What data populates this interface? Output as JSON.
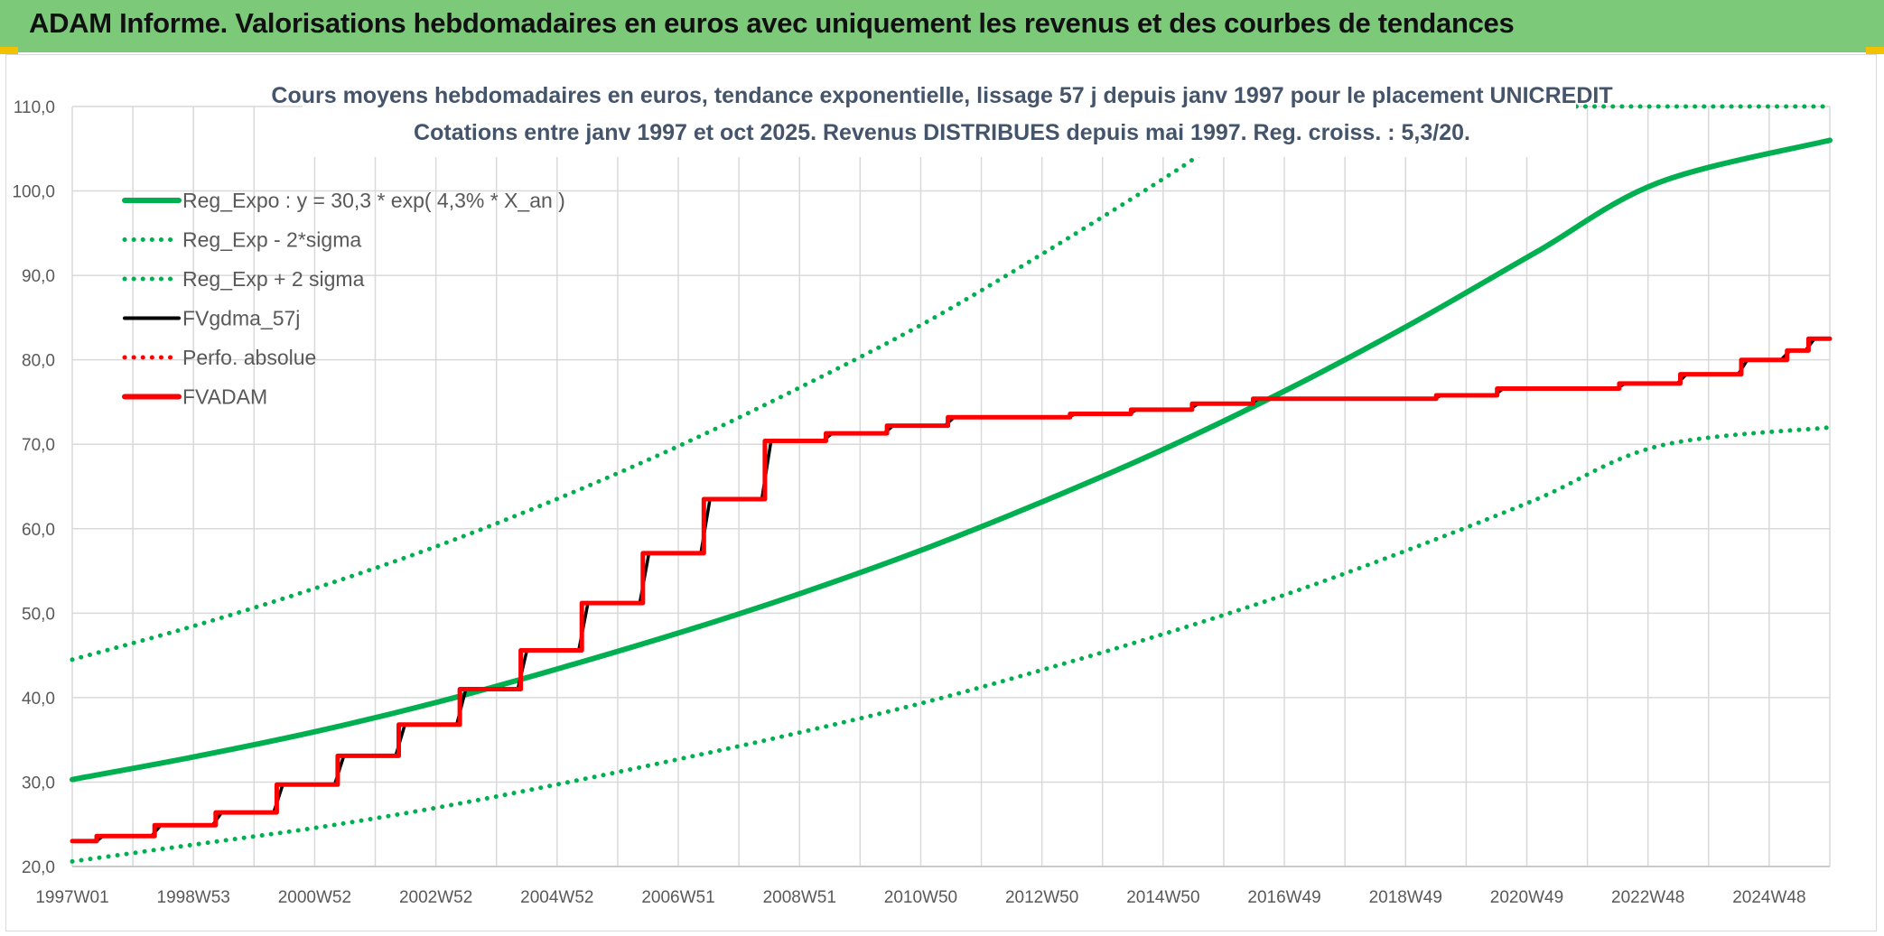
{
  "header": {
    "title": "ADAM Informe. Valorisations hebdomadaires en euros avec uniquement les revenus et des courbes de tendances",
    "background_color": "#7dc97a"
  },
  "chart_data": {
    "type": "line",
    "title_line1": "Cours moyens hebdomadaires en euros, tendance exponentielle, lissage 57 j depuis janv 1997 pour le placement UNICREDIT",
    "title_line2": "Cotations entre janv 1997 et oct 2025. Revenus DISTRIBUES depuis mai 1997. Reg. croiss. : 5,3/20.",
    "ylim": [
      20,
      110
    ],
    "y_ticks": [
      "20,0",
      "30,0",
      "40,0",
      "50,0",
      "60,0",
      "70,0",
      "80,0",
      "90,0",
      "100,0",
      "110,0"
    ],
    "x_range_years": [
      1997.0,
      2025.8
    ],
    "x_tick_labels": [
      "1997W01",
      "1998W53",
      "2000W52",
      "2002W52",
      "2004W52",
      "2006W51",
      "2008W51",
      "2010W50",
      "2012W50",
      "2014W50",
      "2016W49",
      "2018W49",
      "2020W49",
      "2022W48",
      "2024W48"
    ],
    "grid": true,
    "legend_position": "top-left",
    "colors": {
      "green": "#00b050",
      "red": "#ff0000",
      "black": "#000000"
    },
    "series": [
      {
        "name": "Reg_Expo : y = 30,3 * exp( 4,3% *  X_an )",
        "style": "solid",
        "color": "#00b050",
        "points": [
          [
            1997.0,
            30.3
          ],
          [
            1999.0,
            33.0
          ],
          [
            2001.0,
            36.0
          ],
          [
            2003.0,
            39.5
          ],
          [
            2005.0,
            43.5
          ],
          [
            2007.0,
            47.8
          ],
          [
            2009.0,
            52.5
          ],
          [
            2011.0,
            57.7
          ],
          [
            2013.0,
            63.5
          ],
          [
            2015.0,
            69.8
          ],
          [
            2017.0,
            76.8
          ],
          [
            2019.0,
            84.5
          ],
          [
            2021.0,
            92.8
          ],
          [
            2023.0,
            101.0
          ],
          [
            2025.8,
            106.0
          ]
        ]
      },
      {
        "name": "Reg_Exp - 2*sigma",
        "style": "dotted",
        "color": "#00b050",
        "points": [
          [
            1997.0,
            20.6
          ],
          [
            1999.0,
            22.6
          ],
          [
            2001.0,
            24.6
          ],
          [
            2003.0,
            27.0
          ],
          [
            2005.0,
            29.8
          ],
          [
            2007.0,
            32.8
          ],
          [
            2009.0,
            36.0
          ],
          [
            2011.0,
            39.5
          ],
          [
            2013.0,
            43.5
          ],
          [
            2015.0,
            47.8
          ],
          [
            2017.0,
            52.5
          ],
          [
            2019.0,
            57.8
          ],
          [
            2021.0,
            63.5
          ],
          [
            2023.0,
            69.8
          ],
          [
            2025.8,
            72.0
          ]
        ]
      },
      {
        "name": "Reg_Exp + 2 sigma",
        "style": "dotted",
        "color": "#00b050",
        "points": [
          [
            1997.0,
            44.5
          ],
          [
            1999.0,
            48.5
          ],
          [
            2001.0,
            53.0
          ],
          [
            2003.0,
            58.0
          ],
          [
            2005.0,
            63.7
          ],
          [
            2007.0,
            70.0
          ],
          [
            2009.0,
            77.0
          ],
          [
            2011.0,
            84.5
          ],
          [
            2013.0,
            93.0
          ],
          [
            2015.0,
            102.0
          ],
          [
            2015.7,
            105.5
          ]
        ],
        "upper_right_segment": [
          [
            2020.6,
            110.0
          ],
          [
            2025.8,
            110.0
          ]
        ]
      },
      {
        "name": "FVgdma_57j",
        "style": "solid",
        "color": "#000000",
        "points": [
          [
            1997.0,
            23.0
          ],
          [
            1997.4,
            23.0
          ],
          [
            1997.5,
            23.6
          ],
          [
            1998.3,
            23.6
          ],
          [
            1998.45,
            24.9
          ],
          [
            1999.3,
            24.9
          ],
          [
            1999.45,
            26.4
          ],
          [
            2000.3,
            26.4
          ],
          [
            2000.45,
            29.7
          ],
          [
            2001.3,
            29.7
          ],
          [
            2001.45,
            33.1
          ],
          [
            2002.3,
            33.1
          ],
          [
            2002.45,
            36.8
          ],
          [
            2003.3,
            36.8
          ],
          [
            2003.45,
            41.0
          ],
          [
            2004.3,
            41.0
          ],
          [
            2004.45,
            45.6
          ],
          [
            2005.3,
            45.6
          ],
          [
            2005.45,
            51.2
          ],
          [
            2006.3,
            51.2
          ],
          [
            2006.45,
            57.1
          ],
          [
            2007.3,
            57.1
          ],
          [
            2007.45,
            63.5
          ],
          [
            2008.3,
            63.5
          ],
          [
            2008.45,
            70.4
          ],
          [
            2009.3,
            70.4
          ],
          [
            2009.45,
            71.3
          ],
          [
            2010.3,
            71.3
          ],
          [
            2010.45,
            72.2
          ],
          [
            2011.3,
            72.2
          ],
          [
            2011.45,
            73.2
          ],
          [
            2013.3,
            73.2
          ],
          [
            2013.45,
            73.6
          ],
          [
            2014.3,
            73.6
          ],
          [
            2014.45,
            74.1
          ],
          [
            2015.3,
            74.1
          ],
          [
            2015.45,
            74.8
          ],
          [
            2016.3,
            74.8
          ],
          [
            2016.45,
            75.4
          ],
          [
            2019.3,
            75.4
          ],
          [
            2019.45,
            75.8
          ],
          [
            2020.3,
            75.8
          ],
          [
            2020.45,
            76.6
          ],
          [
            2022.3,
            76.6
          ],
          [
            2022.45,
            77.2
          ],
          [
            2023.3,
            77.2
          ],
          [
            2023.45,
            78.3
          ],
          [
            2024.3,
            78.3
          ],
          [
            2024.45,
            80.0
          ],
          [
            2025.0,
            80.0
          ],
          [
            2025.15,
            81.1
          ],
          [
            2025.4,
            81.1
          ],
          [
            2025.55,
            82.5
          ],
          [
            2025.8,
            82.5
          ]
        ]
      },
      {
        "name": "Perfo. absolue",
        "style": "dotted",
        "color": "#ff0000",
        "points": []
      },
      {
        "name": "FVADAM",
        "style": "solid",
        "color": "#ff0000",
        "points": [
          [
            1997.0,
            23.0
          ],
          [
            1997.4,
            23.0
          ],
          [
            1997.4,
            23.6
          ],
          [
            1998.35,
            23.6
          ],
          [
            1998.35,
            24.9
          ],
          [
            1999.35,
            24.9
          ],
          [
            1999.35,
            26.4
          ],
          [
            2000.35,
            26.4
          ],
          [
            2000.35,
            29.7
          ],
          [
            2001.35,
            29.7
          ],
          [
            2001.35,
            33.1
          ],
          [
            2002.35,
            33.1
          ],
          [
            2002.35,
            36.8
          ],
          [
            2003.35,
            36.8
          ],
          [
            2003.35,
            41.0
          ],
          [
            2004.35,
            41.0
          ],
          [
            2004.35,
            45.6
          ],
          [
            2005.35,
            45.6
          ],
          [
            2005.35,
            51.2
          ],
          [
            2006.35,
            51.2
          ],
          [
            2006.35,
            57.1
          ],
          [
            2007.35,
            57.1
          ],
          [
            2007.35,
            63.5
          ],
          [
            2008.35,
            63.5
          ],
          [
            2008.35,
            70.4
          ],
          [
            2009.35,
            70.4
          ],
          [
            2009.35,
            71.3
          ],
          [
            2010.35,
            71.3
          ],
          [
            2010.35,
            72.2
          ],
          [
            2011.35,
            72.2
          ],
          [
            2011.35,
            73.2
          ],
          [
            2013.35,
            73.2
          ],
          [
            2013.35,
            73.6
          ],
          [
            2014.35,
            73.6
          ],
          [
            2014.35,
            74.1
          ],
          [
            2015.35,
            74.1
          ],
          [
            2015.35,
            74.8
          ],
          [
            2016.35,
            74.8
          ],
          [
            2016.35,
            75.4
          ],
          [
            2019.35,
            75.4
          ],
          [
            2019.35,
            75.8
          ],
          [
            2020.35,
            75.8
          ],
          [
            2020.35,
            76.6
          ],
          [
            2022.35,
            76.6
          ],
          [
            2022.35,
            77.2
          ],
          [
            2023.35,
            77.2
          ],
          [
            2023.35,
            78.3
          ],
          [
            2024.35,
            78.3
          ],
          [
            2024.35,
            80.0
          ],
          [
            2025.1,
            80.0
          ],
          [
            2025.1,
            81.1
          ],
          [
            2025.45,
            81.1
          ],
          [
            2025.45,
            82.5
          ],
          [
            2025.8,
            82.5
          ]
        ]
      }
    ]
  }
}
